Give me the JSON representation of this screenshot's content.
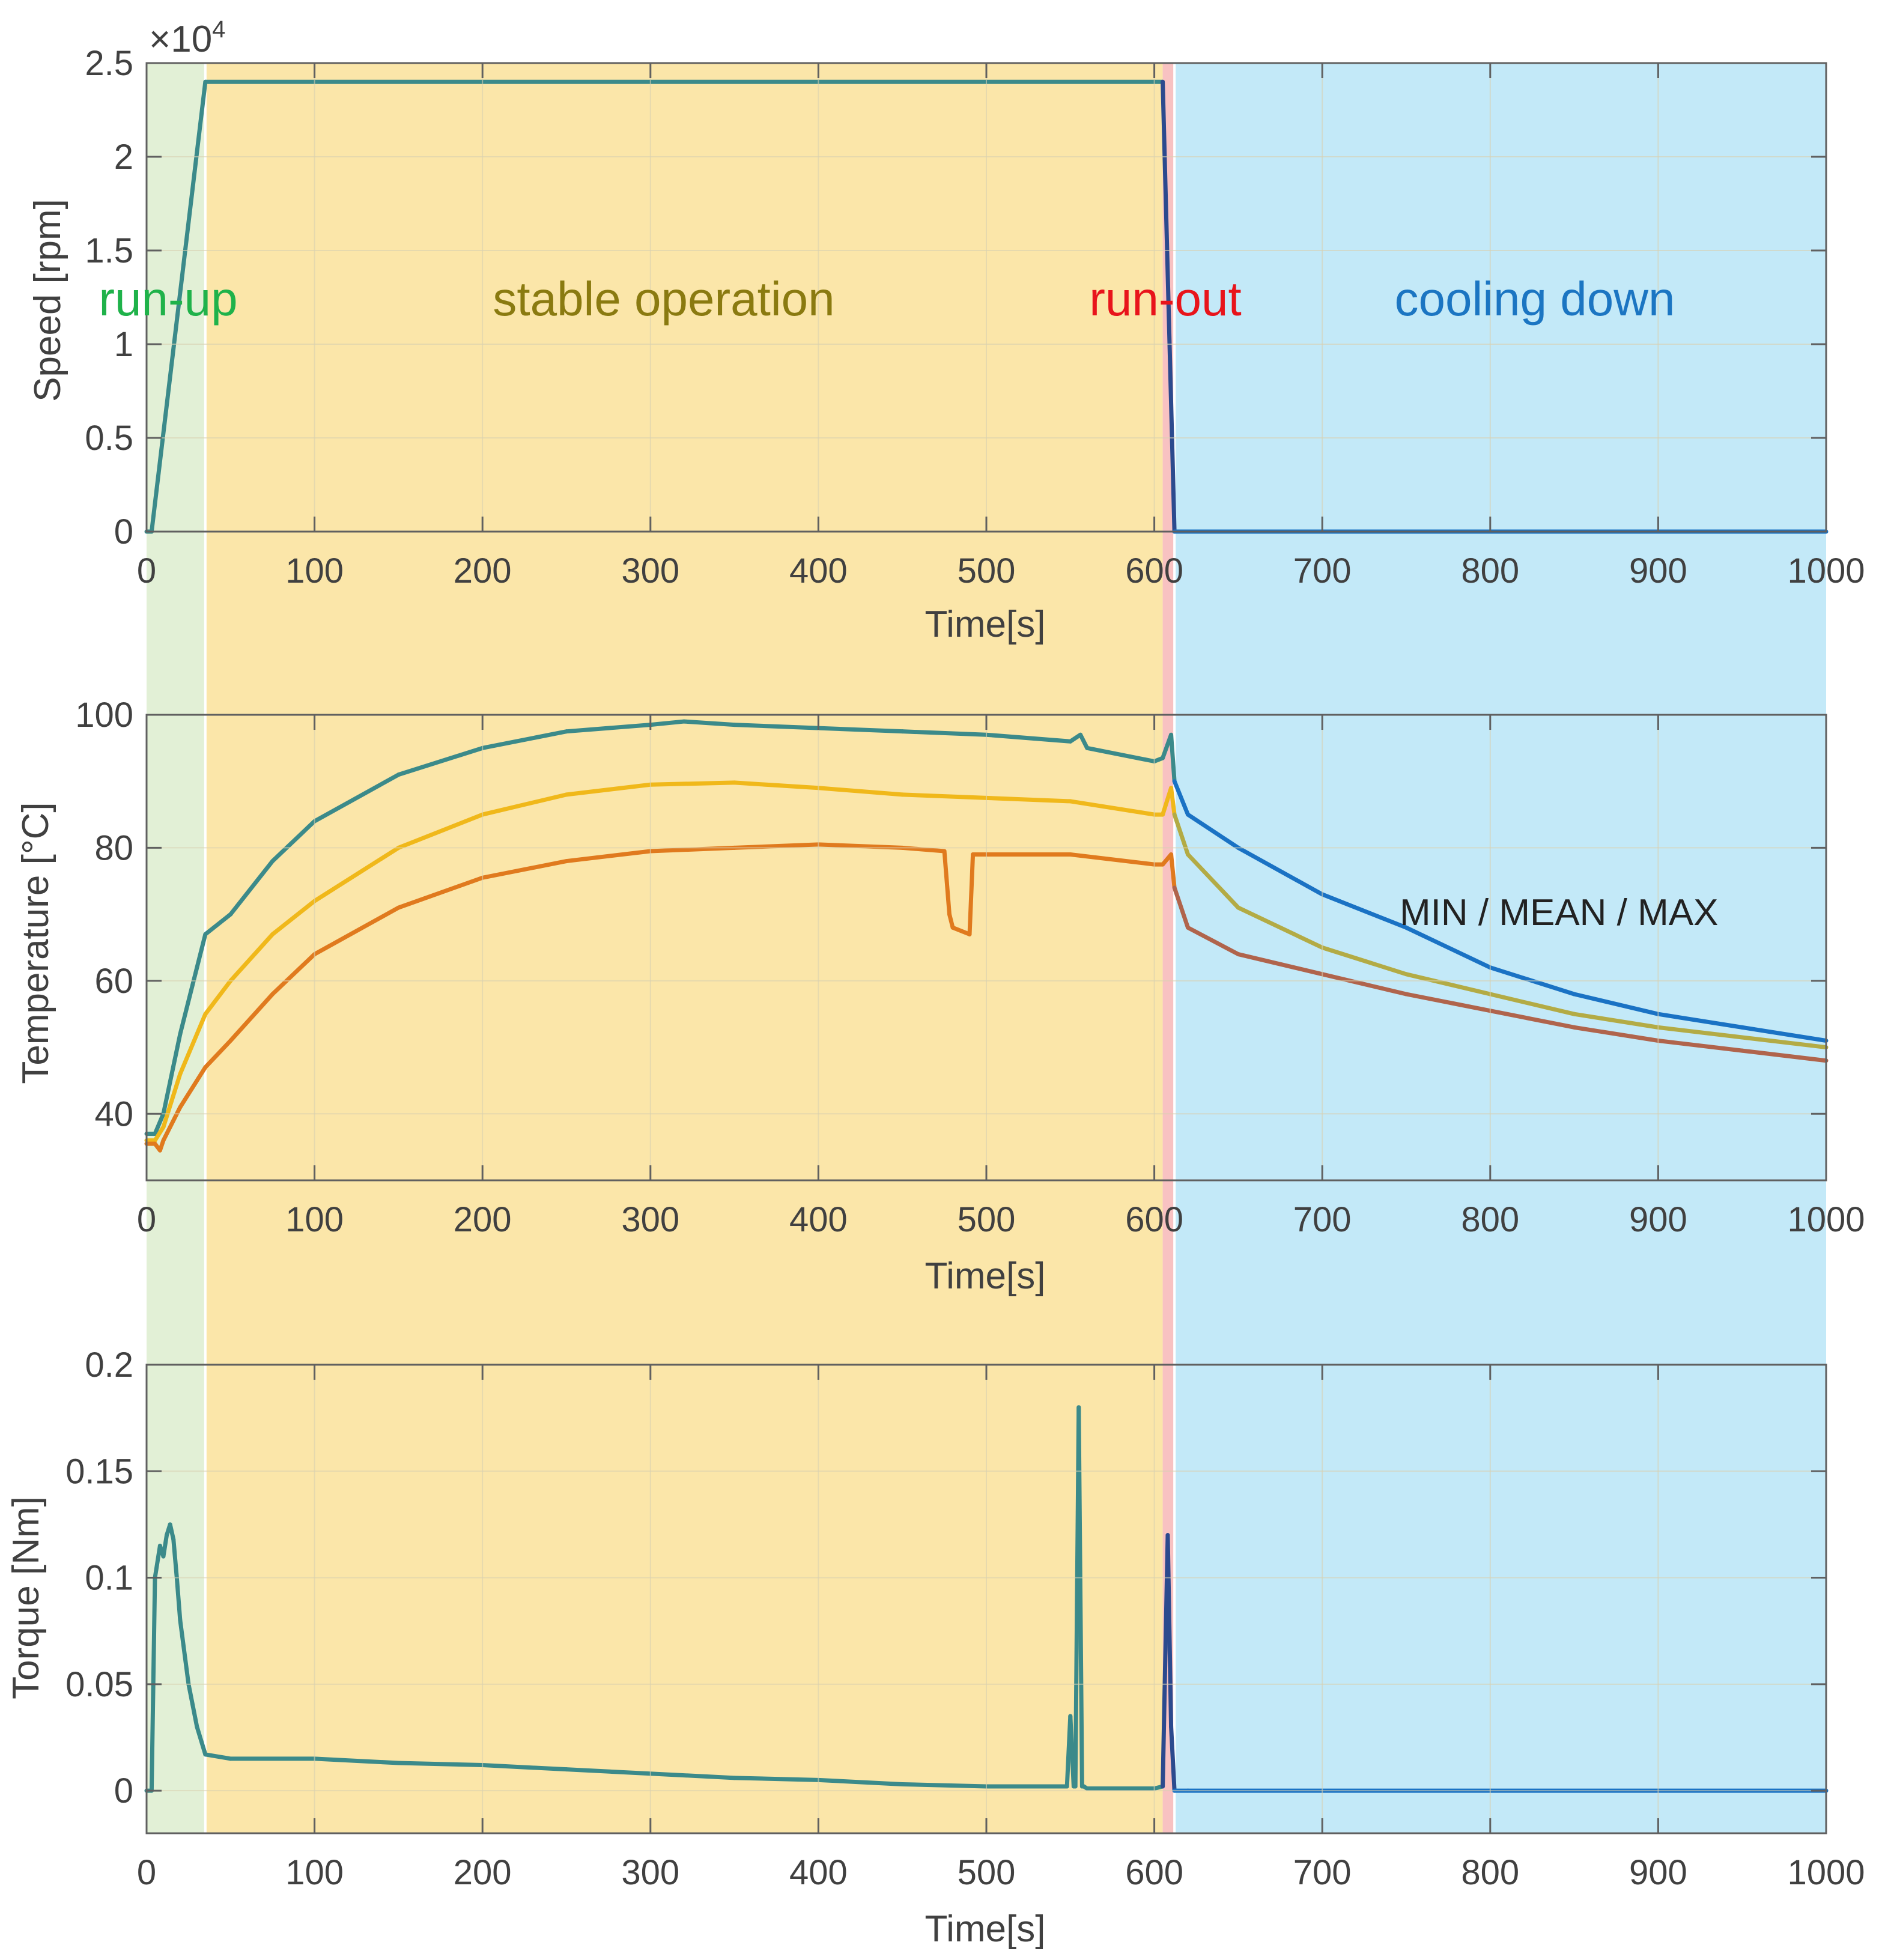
{
  "colors": {
    "run_up_bg": "#e2f0d6",
    "stable_bg": "#fbe6a9",
    "run_out_bg": "#f8c2c2",
    "cooling_bg": "#c3e9f8",
    "run_up_text": "#1fb24a",
    "stable_text": "#8a7a10",
    "run_out_text": "#e8141b",
    "cooling_text": "#1b75c2",
    "stable_series": "#3b8a8a",
    "runout_series": "#2c4a8e",
    "cooling_series": "#1a72c4",
    "temp_max": "#3b8a8a",
    "temp_mean": "#f0b81a",
    "temp_min": "#e07a1e",
    "cool_max": "#1a72c4",
    "cool_mean": "#b3ab45",
    "cool_min": "#b0644c"
  },
  "phases": [
    {
      "key": "run_up",
      "label": "run-up",
      "start": 0,
      "end": 35
    },
    {
      "key": "stable",
      "label": "stable operation",
      "start": 35,
      "end": 605
    },
    {
      "key": "run_out",
      "label": "run-out",
      "start": 605,
      "end": 612
    },
    {
      "key": "cooling",
      "label": "cooling down",
      "start": 612,
      "end": 1000
    }
  ],
  "chart_data": [
    {
      "type": "line",
      "ylabel": "Speed [rpm]",
      "xlabel": "Time[s]",
      "exponent_label": "×10",
      "exponent_power": "4",
      "xlim": [
        0,
        1000
      ],
      "ylim": [
        0,
        2.5
      ],
      "xticks": [
        0,
        100,
        200,
        300,
        400,
        500,
        600,
        700,
        800,
        900,
        1000
      ],
      "xtick_labels": [
        "0",
        "100",
        "200",
        "300",
        "400",
        "500",
        "600",
        "700",
        "800",
        "900",
        "1000"
      ],
      "yticks": [
        0,
        0.5,
        1,
        1.5,
        2,
        2.5
      ],
      "ytick_labels": [
        "0",
        "0.5",
        "1",
        "1.5",
        "2",
        "2.5"
      ],
      "series": [
        {
          "name": "speed",
          "x": [
            0,
            3,
            35,
            100,
            200,
            300,
            400,
            500,
            600,
            605,
            612,
            700,
            800,
            900,
            1000
          ],
          "y": [
            0,
            0,
            2.4,
            2.4,
            2.4,
            2.4,
            2.4,
            2.4,
            2.4,
            2.4,
            0,
            0,
            0,
            0,
            0
          ]
        }
      ]
    },
    {
      "type": "line",
      "ylabel": "Temperature [°C]",
      "xlabel": "Time[s]",
      "annotation": "MIN / MEAN / MAX",
      "xlim": [
        0,
        1000
      ],
      "ylim": [
        30,
        100
      ],
      "xticks": [
        0,
        100,
        200,
        300,
        400,
        500,
        600,
        700,
        800,
        900,
        1000
      ],
      "xtick_labels": [
        "0",
        "100",
        "200",
        "300",
        "400",
        "500",
        "600",
        "700",
        "800",
        "900",
        "1000"
      ],
      "yticks": [
        40,
        60,
        80,
        100
      ],
      "ytick_labels": [
        "40",
        "60",
        "80",
        "100"
      ],
      "series": [
        {
          "name": "MAX",
          "x": [
            0,
            5,
            10,
            20,
            30,
            35,
            50,
            75,
            100,
            150,
            200,
            250,
            300,
            320,
            350,
            400,
            450,
            500,
            550,
            556,
            560,
            600,
            605,
            610,
            612,
            620,
            650,
            700,
            750,
            800,
            850,
            900,
            950,
            1000
          ],
          "y": [
            37,
            37,
            40,
            52,
            62,
            67,
            70,
            78,
            84,
            91,
            95,
            97.5,
            98.5,
            99,
            98.5,
            98,
            97.5,
            97,
            96,
            97,
            95,
            93,
            93.5,
            97,
            90,
            85,
            80,
            73,
            68,
            62,
            58,
            55,
            53,
            51
          ]
        },
        {
          "name": "MEAN",
          "x": [
            0,
            5,
            10,
            20,
            35,
            50,
            75,
            100,
            150,
            200,
            250,
            300,
            350,
            400,
            450,
            500,
            550,
            600,
            605,
            610,
            612,
            620,
            650,
            700,
            750,
            800,
            850,
            900,
            950,
            1000
          ],
          "y": [
            36,
            36,
            38,
            46,
            55,
            60,
            67,
            72,
            80,
            85,
            88,
            89.5,
            89.8,
            89,
            88,
            87.5,
            87,
            85,
            85,
            89,
            85,
            79,
            71,
            65,
            61,
            58,
            55,
            53,
            51.5,
            50
          ]
        },
        {
          "name": "MIN",
          "x": [
            0,
            5,
            8,
            10,
            20,
            35,
            50,
            75,
            100,
            150,
            200,
            250,
            300,
            350,
            400,
            450,
            475,
            478,
            480,
            490,
            492,
            500,
            550,
            600,
            605,
            610,
            612,
            620,
            650,
            700,
            750,
            800,
            850,
            900,
            950,
            1000
          ],
          "y": [
            35.5,
            35.5,
            34.5,
            36,
            41,
            47,
            51,
            58,
            64,
            71,
            75.5,
            78,
            79.5,
            80,
            80.5,
            80,
            79.5,
            70,
            68,
            67,
            79,
            79,
            79,
            77.5,
            77.5,
            79,
            74,
            68,
            64,
            61,
            58,
            55.5,
            53,
            51,
            49.5,
            48
          ]
        }
      ]
    },
    {
      "type": "line",
      "ylabel": "Torque [Nm]",
      "xlabel": "Time[s]",
      "xlim": [
        0,
        1000
      ],
      "ylim": [
        -0.02,
        0.2
      ],
      "xticks": [
        0,
        100,
        200,
        300,
        400,
        500,
        600,
        700,
        800,
        900,
        1000
      ],
      "xtick_labels": [
        "0",
        "100",
        "200",
        "300",
        "400",
        "500",
        "600",
        "700",
        "800",
        "900",
        "1000"
      ],
      "yticks": [
        0,
        0.05,
        0.1,
        0.15,
        0.2
      ],
      "ytick_labels": [
        "0",
        "0.05",
        "0.1",
        "0.15",
        "0.2"
      ],
      "series": [
        {
          "name": "torque",
          "x": [
            0,
            3,
            5,
            8,
            10,
            12,
            14,
            16,
            18,
            20,
            25,
            30,
            35,
            50,
            100,
            150,
            200,
            250,
            300,
            350,
            400,
            450,
            500,
            548,
            550,
            552,
            553,
            555,
            557,
            558,
            560,
            600,
            605,
            608,
            610,
            612,
            620,
            700,
            800,
            900,
            1000
          ],
          "y": [
            0,
            0,
            0.1,
            0.115,
            0.11,
            0.12,
            0.125,
            0.118,
            0.1,
            0.08,
            0.05,
            0.03,
            0.017,
            0.015,
            0.015,
            0.013,
            0.012,
            0.01,
            0.008,
            0.006,
            0.005,
            0.003,
            0.002,
            0.002,
            0.035,
            0.002,
            0.002,
            0.18,
            0.002,
            0.002,
            0.001,
            0.001,
            0.002,
            0.12,
            0.03,
            0,
            0,
            0,
            0,
            0,
            0
          ]
        }
      ]
    }
  ]
}
